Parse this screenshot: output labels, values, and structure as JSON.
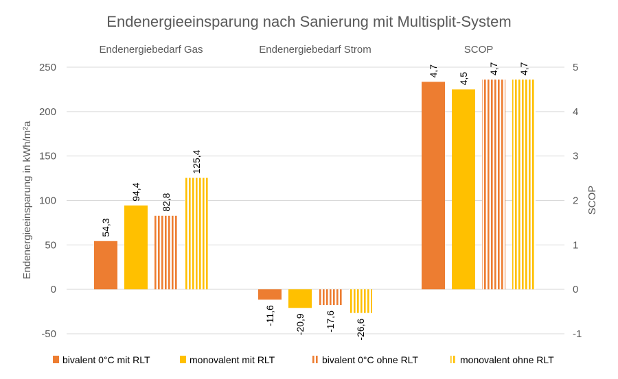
{
  "chart_data": {
    "type": "bar",
    "title": "Endenergieeinsparung nach Sanierung mit Multisplit-System",
    "categories": [
      "Endenergiebedarf Gas",
      "Endenergiebedarf Strom",
      "SCOP"
    ],
    "ylabel": "Endenergieeinsparung  in kWh/m²a",
    "y2label": "SCOP",
    "ylim": [
      -50,
      250
    ],
    "y_ticks": [
      "250",
      "200",
      "150",
      "100",
      "50",
      "0",
      "-50"
    ],
    "y2lim": [
      -1,
      5
    ],
    "y2_ticks": [
      "5",
      "4",
      "3",
      "2",
      "1",
      "0",
      "-1"
    ],
    "grid": true,
    "legend_position": "bottom",
    "series": [
      {
        "name": "bivalent 0°C mit RLT",
        "pattern": "solid",
        "color": "#ED7D31",
        "values": [
          54.3,
          -11.6,
          4.67
        ],
        "labels": [
          "54,3",
          "-11,6",
          "4,7"
        ]
      },
      {
        "name": "monovalent mit RLT",
        "pattern": "solid",
        "color": "#FFC000",
        "values": [
          94.4,
          -20.9,
          4.5
        ],
        "labels": [
          "94,4",
          "-20,9",
          "4,5"
        ]
      },
      {
        "name": "bivalent 0°C ohne RLT",
        "pattern": "vertical-stripes",
        "color": "#ED7D31",
        "values": [
          82.8,
          -17.6,
          4.72
        ],
        "labels": [
          "82,8",
          "-17,6",
          "4,7"
        ]
      },
      {
        "name": "monovalent ohne RLT",
        "pattern": "vertical-stripes",
        "color": "#FFC000",
        "values": [
          125.4,
          -26.6,
          4.72
        ],
        "labels": [
          "125,4",
          "-26,6",
          "4,7"
        ]
      }
    ],
    "scop_axis_categories": [
      "SCOP"
    ]
  }
}
